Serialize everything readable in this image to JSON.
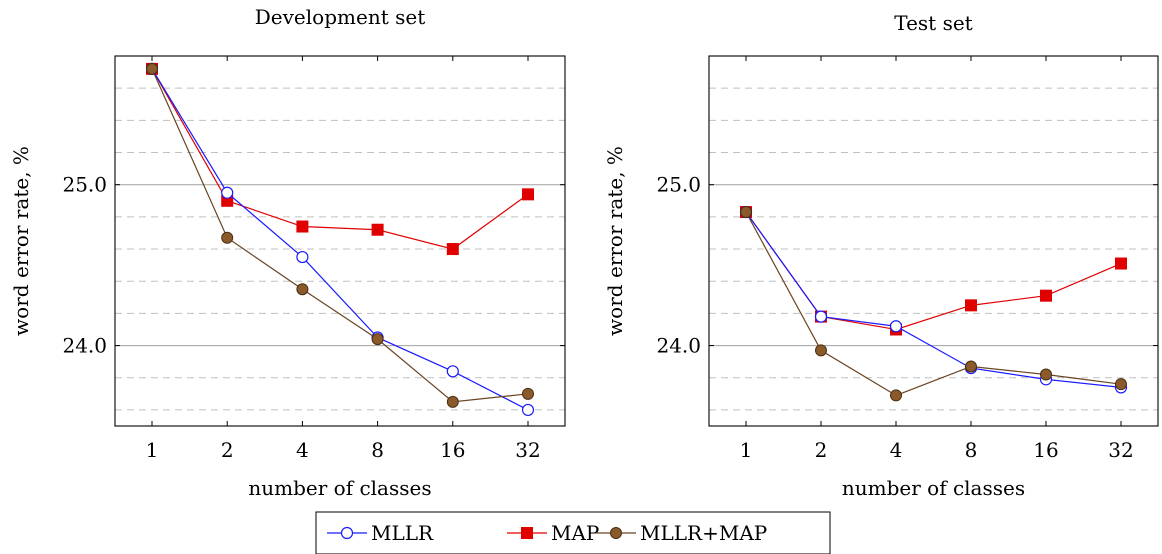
{
  "chart_data": [
    {
      "type": "line",
      "title": "Development set",
      "xlabel": "number of classes",
      "ylabel": "word error rate, %",
      "categories": [
        "1",
        "2",
        "4",
        "8",
        "16",
        "32"
      ],
      "ylim": [
        23.5,
        25.8
      ],
      "yticks_labeled": [
        "24.0",
        "25.0"
      ],
      "ytick_values": [
        24.0,
        25.0
      ],
      "minor_grid_values": [
        23.6,
        23.8,
        24.2,
        24.4,
        24.6,
        24.8,
        25.2,
        25.4,
        25.6
      ],
      "grid": true,
      "series": [
        {
          "name": "MLLR",
          "values": [
            25.72,
            24.95,
            24.55,
            24.05,
            23.84,
            23.6
          ]
        },
        {
          "name": "MAP",
          "values": [
            25.72,
            24.9,
            24.74,
            24.72,
            24.6,
            24.94
          ]
        },
        {
          "name": "MLLR+MAP",
          "values": [
            25.72,
            24.67,
            24.35,
            24.04,
            23.65,
            23.7
          ]
        }
      ]
    },
    {
      "type": "line",
      "title": "Test set",
      "xlabel": "number of classes",
      "ylabel": "word error rate, %",
      "categories": [
        "1",
        "2",
        "4",
        "8",
        "16",
        "32"
      ],
      "ylim": [
        23.5,
        25.8
      ],
      "yticks_labeled": [
        "24.0",
        "25.0"
      ],
      "ytick_values": [
        24.0,
        25.0
      ],
      "minor_grid_values": [
        23.6,
        23.8,
        24.2,
        24.4,
        24.6,
        24.8,
        25.2,
        25.4,
        25.6
      ],
      "grid": true,
      "series": [
        {
          "name": "MLLR",
          "values": [
            24.83,
            24.18,
            24.12,
            23.86,
            23.79,
            23.74
          ]
        },
        {
          "name": "MAP",
          "values": [
            24.83,
            24.18,
            24.1,
            24.25,
            24.31,
            24.51
          ]
        },
        {
          "name": "MLLR+MAP",
          "values": [
            24.83,
            23.97,
            23.69,
            23.87,
            23.82,
            23.76
          ]
        }
      ]
    }
  ],
  "legend": {
    "placement": "bottom-center",
    "entries": [
      {
        "name": "MLLR",
        "color": "#0000ff",
        "marker": "open-circle"
      },
      {
        "name": "MAP",
        "color": "#e00000",
        "marker": "filled-square"
      },
      {
        "name": "MLLR+MAP",
        "color": "#7a4a1e",
        "marker": "filled-circle"
      }
    ]
  },
  "colors": {
    "MLLR": "#1a1aff",
    "MAP": "#e00000",
    "MLLR+MAP": "#6b4423",
    "grid_major": "#a0a0a0",
    "grid_minor": "#c0c0c0"
  }
}
